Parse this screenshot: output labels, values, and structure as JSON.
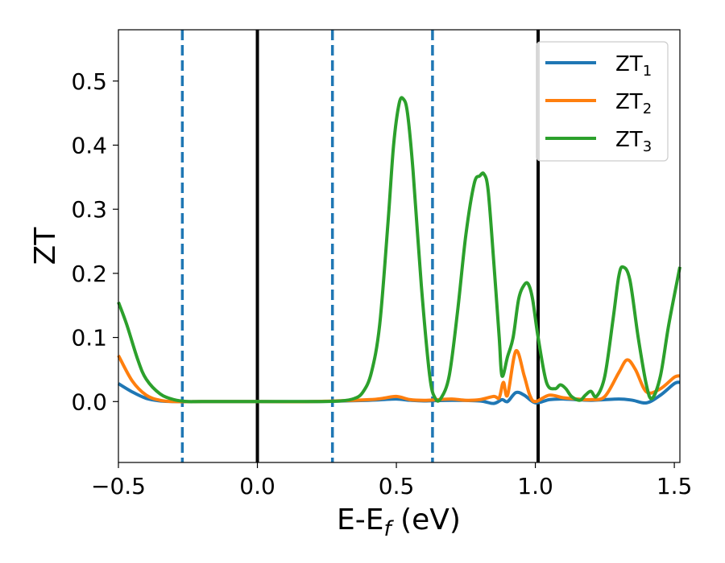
{
  "chart_data": {
    "type": "line",
    "title": "",
    "xlabel": {
      "main": "E-E",
      "sub": "f",
      "suffix": " (eV)"
    },
    "ylabel": "ZT",
    "xlim": [
      -0.5,
      1.52
    ],
    "ylim": [
      -0.095,
      0.58
    ],
    "xticks": [
      -0.5,
      0.0,
      0.5,
      1.0,
      1.5
    ],
    "xtick_labels": [
      "−0.5",
      "0.0",
      "0.5",
      "1.0",
      "1.5"
    ],
    "yticks": [
      0.0,
      0.1,
      0.2,
      0.3,
      0.4,
      0.5
    ],
    "ytick_labels": [
      "0.0",
      "0.1",
      "0.2",
      "0.3",
      "0.4",
      "0.5"
    ],
    "grid": false,
    "legend_position": "top-right",
    "vertical_lines": [
      {
        "x": -0.27,
        "style": "dashed",
        "color": "#1f77b4"
      },
      {
        "x": 0.0,
        "style": "solid",
        "color": "#000000"
      },
      {
        "x": 0.27,
        "style": "dashed",
        "color": "#1f77b4"
      },
      {
        "x": 0.63,
        "style": "dashed",
        "color": "#1f77b4"
      },
      {
        "x": 1.01,
        "style": "solid",
        "color": "#000000"
      }
    ],
    "series": [
      {
        "name": "ZT",
        "name_sub": "1",
        "color": "#1f77b4",
        "x": [
          -0.5,
          -0.45,
          -0.4,
          -0.35,
          -0.3,
          -0.2,
          0.0,
          0.2,
          0.4,
          0.45,
          0.5,
          0.55,
          0.6,
          0.7,
          0.8,
          0.85,
          0.88,
          0.9,
          0.93,
          0.96,
          1.0,
          1.05,
          1.1,
          1.2,
          1.3,
          1.35,
          1.4,
          1.45,
          1.5,
          1.52
        ],
        "y": [
          0.028,
          0.015,
          0.005,
          0.001,
          0.0,
          0.0,
          0.0,
          0.0,
          0.002,
          0.003,
          0.004,
          0.002,
          0.001,
          0.002,
          0.001,
          -0.003,
          0.003,
          0.0,
          0.014,
          0.01,
          -0.002,
          0.003,
          0.004,
          0.002,
          0.004,
          0.002,
          -0.002,
          0.01,
          0.028,
          0.03
        ]
      },
      {
        "name": "ZT",
        "name_sub": "2",
        "color": "#ff7f0e",
        "x": [
          -0.5,
          -0.45,
          -0.4,
          -0.35,
          -0.3,
          -0.2,
          0.0,
          0.2,
          0.4,
          0.45,
          0.5,
          0.55,
          0.6,
          0.65,
          0.7,
          0.75,
          0.8,
          0.85,
          0.87,
          0.885,
          0.9,
          0.93,
          0.96,
          0.98,
          1.0,
          1.05,
          1.1,
          1.15,
          1.2,
          1.25,
          1.3,
          1.33,
          1.36,
          1.4,
          1.45,
          1.5,
          1.52
        ],
        "y": [
          0.072,
          0.032,
          0.01,
          0.002,
          0.0,
          0.0,
          0.0,
          0.0,
          0.003,
          0.005,
          0.008,
          0.003,
          0.002,
          0.003,
          0.004,
          0.002,
          0.003,
          0.008,
          0.006,
          0.03,
          0.01,
          0.079,
          0.04,
          0.01,
          0.0,
          0.01,
          0.006,
          0.004,
          0.003,
          0.008,
          0.045,
          0.065,
          0.05,
          0.015,
          0.02,
          0.038,
          0.04
        ]
      },
      {
        "name": "ZT",
        "name_sub": "3",
        "color": "#2ca02c",
        "x": [
          -0.5,
          -0.47,
          -0.43,
          -0.4,
          -0.35,
          -0.3,
          -0.25,
          -0.2,
          0.0,
          0.2,
          0.3,
          0.35,
          0.38,
          0.41,
          0.44,
          0.47,
          0.49,
          0.51,
          0.525,
          0.54,
          0.56,
          0.59,
          0.62,
          0.64,
          0.66,
          0.69,
          0.72,
          0.75,
          0.78,
          0.8,
          0.815,
          0.83,
          0.85,
          0.87,
          0.88,
          0.9,
          0.92,
          0.94,
          0.96,
          0.975,
          0.99,
          1.01,
          1.04,
          1.07,
          1.09,
          1.11,
          1.13,
          1.16,
          1.18,
          1.2,
          1.22,
          1.25,
          1.28,
          1.3,
          1.315,
          1.34,
          1.37,
          1.4,
          1.42,
          1.45,
          1.48,
          1.52
        ],
        "y": [
          0.155,
          0.12,
          0.065,
          0.035,
          0.012,
          0.003,
          0.0,
          0.0,
          0.0,
          0.0,
          0.001,
          0.005,
          0.015,
          0.045,
          0.12,
          0.28,
          0.4,
          0.465,
          0.472,
          0.45,
          0.36,
          0.18,
          0.04,
          0.005,
          0.005,
          0.04,
          0.14,
          0.26,
          0.34,
          0.352,
          0.355,
          0.33,
          0.22,
          0.1,
          0.04,
          0.07,
          0.1,
          0.16,
          0.182,
          0.183,
          0.16,
          0.1,
          0.03,
          0.02,
          0.026,
          0.02,
          0.008,
          0.002,
          0.01,
          0.016,
          0.008,
          0.04,
          0.13,
          0.195,
          0.21,
          0.19,
          0.1,
          0.025,
          0.005,
          0.04,
          0.12,
          0.21
        ]
      }
    ]
  }
}
